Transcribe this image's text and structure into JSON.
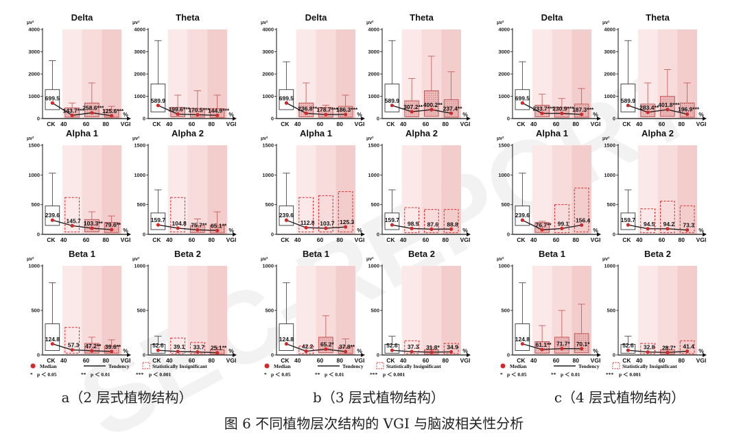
{
  "watermark": "SEC-REPORT",
  "colors": {
    "median": "#d62728",
    "sig": "#e5a3a3",
    "sigEdge": "#c05050",
    "insigEdge": "#d62728",
    "tendency": "#222222",
    "bandLight": "#fbe9e9",
    "bandMid": "#f8dcdc",
    "bandDark": "#f3cccc"
  },
  "axis": {
    "unit": "μv²",
    "pct": "%",
    "vgi": "VGI",
    "ck": "CK",
    "x_ticks": [
      "40",
      "60",
      "80"
    ]
  },
  "captions": {
    "a": "a（2 层式植物结构）",
    "b": "b（3 层式植物结构）",
    "c": "c（4 层式植物结构）",
    "figure": "图 6 不同植物层次结构的 VGI 与脑波相关性分析"
  },
  "legend": {
    "median": "Median",
    "tendency": "Tendency",
    "insignificant": "Statistically Insignificant",
    "p1": "p ＜ 0.05",
    "p2": "p ＜ 0.01",
    "p3": "p ＜ 0.001",
    "s1": "*",
    "s2": "**",
    "s3": "***"
  },
  "chart_data": [
    {
      "type": "box",
      "group": "a",
      "title": "Delta",
      "ylim": [
        0,
        4000
      ],
      "yticks": [
        0,
        1000,
        2000,
        3000,
        4000
      ],
      "boxes": [
        {
          "q1": 400,
          "q3": 1300,
          "whisker_high": 2600,
          "median": 699.5,
          "label": "699.5",
          "sig": "ck"
        },
        {
          "q1": 60,
          "q3": 480,
          "whisker_high": 700,
          "median": 143.7,
          "label": "143.7***",
          "sig": "sig"
        },
        {
          "q1": 80,
          "q3": 700,
          "whisker_high": 1600,
          "median": 258.6,
          "label": "258.6***",
          "sig": "sig"
        },
        {
          "q1": 60,
          "q3": 400,
          "whisker_high": 550,
          "median": 125.6,
          "label": "125.6***",
          "sig": "sig"
        }
      ]
    },
    {
      "type": "box",
      "group": "a",
      "title": "Theta",
      "ylim": [
        0,
        4000
      ],
      "yticks": [
        0,
        1000,
        2000,
        3000,
        4000
      ],
      "boxes": [
        {
          "q1": 300,
          "q3": 1550,
          "whisker_high": 3500,
          "median": 589.9,
          "label": "589.9",
          "sig": "ck"
        },
        {
          "q1": 80,
          "q3": 500,
          "whisker_high": 1050,
          "median": 199.6,
          "label": "199.6***",
          "sig": "sig"
        },
        {
          "q1": 60,
          "q3": 450,
          "whisker_high": 1250,
          "median": 170.5,
          "label": "170.5***",
          "sig": "sig"
        },
        {
          "q1": 50,
          "q3": 450,
          "whisker_high": 1050,
          "median": 144.9,
          "label": "144.9***",
          "sig": "sig"
        }
      ]
    },
    {
      "type": "box",
      "group": "b",
      "title": "Delta",
      "ylim": [
        0,
        4000
      ],
      "yticks": [
        0,
        1000,
        2000,
        3000,
        4000
      ],
      "boxes": [
        {
          "q1": 400,
          "q3": 1300,
          "whisker_high": 2550,
          "median": 699.5,
          "label": "699.5",
          "sig": "ck"
        },
        {
          "q1": 80,
          "q3": 700,
          "whisker_high": 1600,
          "median": 236.8,
          "label": "236.8**",
          "sig": "sig"
        },
        {
          "q1": 60,
          "q3": 500,
          "whisker_high": 600,
          "median": 178.7,
          "label": "178.7***",
          "sig": "sig"
        },
        {
          "q1": 60,
          "q3": 550,
          "whisker_high": 1050,
          "median": 186.3,
          "label": "186.3***",
          "sig": "sig"
        }
      ]
    },
    {
      "type": "box",
      "group": "b",
      "title": "Theta",
      "ylim": [
        0,
        4000
      ],
      "yticks": [
        0,
        1000,
        2000,
        3000,
        4000
      ],
      "boxes": [
        {
          "q1": 300,
          "q3": 1550,
          "whisker_high": 3500,
          "median": 589.9,
          "label": "589.9",
          "sig": "ck"
        },
        {
          "q1": 80,
          "q3": 800,
          "whisker_high": 1800,
          "median": 307.2,
          "label": "307.2**",
          "sig": "sig"
        },
        {
          "q1": 100,
          "q3": 1250,
          "whisker_high": 2800,
          "median": 400.2,
          "label": "400.2**",
          "sig": "sig"
        },
        {
          "q1": 60,
          "q3": 850,
          "whisker_high": 2100,
          "median": 237.4,
          "label": "237.4**",
          "sig": "sig"
        }
      ]
    },
    {
      "type": "box",
      "group": "c",
      "title": "Delta",
      "ylim": [
        0,
        4000
      ],
      "yticks": [
        0,
        1000,
        2000,
        3000,
        4000
      ],
      "boxes": [
        {
          "q1": 400,
          "q3": 1300,
          "whisker_high": 2550,
          "median": 699.5,
          "label": "699.5",
          "sig": "ck"
        },
        {
          "q1": 80,
          "q3": 600,
          "whisker_high": 1100,
          "median": 233.7,
          "label": "233.7***",
          "sig": "sig"
        },
        {
          "q1": 60,
          "q3": 500,
          "whisker_high": 900,
          "median": 230.9,
          "label": "230.9***",
          "sig": "sig"
        },
        {
          "q1": 60,
          "q3": 650,
          "whisker_high": 1350,
          "median": 187.3,
          "label": "187.3***",
          "sig": "sig"
        }
      ]
    },
    {
      "type": "box",
      "group": "c",
      "title": "Theta",
      "ylim": [
        0,
        4000
      ],
      "yticks": [
        0,
        1000,
        2000,
        3000,
        4000
      ],
      "boxes": [
        {
          "q1": 300,
          "q3": 1550,
          "whisker_high": 3500,
          "median": 589.9,
          "label": "589.9",
          "sig": "ck"
        },
        {
          "q1": 80,
          "q3": 650,
          "whisker_high": 1600,
          "median": 283.4,
          "label": "283.4**",
          "sig": "sig"
        },
        {
          "q1": 100,
          "q3": 1000,
          "whisker_high": 2200,
          "median": 401.8,
          "label": "401.8***",
          "sig": "sig"
        },
        {
          "q1": 60,
          "q3": 700,
          "whisker_high": 1600,
          "median": 196.9,
          "label": "196.9***",
          "sig": "sig"
        }
      ]
    },
    {
      "type": "box",
      "group": "a",
      "title": "Alpha 1",
      "ylim": [
        0,
        1500
      ],
      "yticks": [
        0,
        500,
        1000,
        1500
      ],
      "boxes": [
        {
          "q1": 150,
          "q3": 480,
          "whisker_high": 1030,
          "median": 239.6,
          "label": "239.6",
          "sig": "ck"
        },
        {
          "q1": 40,
          "q3": 620,
          "whisker_high": 620,
          "median": 145.7,
          "label": "145.7",
          "sig": "insig"
        },
        {
          "q1": 40,
          "q3": 250,
          "whisker_high": 380,
          "median": 103.3,
          "label": "103.3**",
          "sig": "sig"
        },
        {
          "q1": 30,
          "q3": 200,
          "whisker_high": 310,
          "median": 79.6,
          "label": "79.6**",
          "sig": "sig"
        }
      ]
    },
    {
      "type": "box",
      "group": "a",
      "title": "Alpha 2",
      "ylim": [
        0,
        1500
      ],
      "yticks": [
        0,
        500,
        1000,
        1500
      ],
      "boxes": [
        {
          "q1": 80,
          "q3": 360,
          "whisker_high": 750,
          "median": 159.7,
          "label": "159.7",
          "sig": "ck"
        },
        {
          "q1": 40,
          "q3": 620,
          "whisker_high": 620,
          "median": 104.8,
          "label": "104.8",
          "sig": "insig"
        },
        {
          "q1": 30,
          "q3": 150,
          "whisker_high": 260,
          "median": 75.7,
          "label": "75.7**",
          "sig": "sig"
        },
        {
          "q1": 25,
          "q3": 150,
          "whisker_high": 380,
          "median": 65.1,
          "label": "65.1**",
          "sig": "sig"
        }
      ]
    },
    {
      "type": "box",
      "group": "b",
      "title": "Alpha 1",
      "ylim": [
        0,
        1500
      ],
      "yticks": [
        0,
        500,
        1000,
        1500
      ],
      "boxes": [
        {
          "q1": 150,
          "q3": 480,
          "whisker_high": 1030,
          "median": 239.6,
          "label": "239.6",
          "sig": "ck"
        },
        {
          "q1": 40,
          "q3": 620,
          "whisker_high": 620,
          "median": 112.8,
          "label": "112.8",
          "sig": "insig"
        },
        {
          "q1": 40,
          "q3": 650,
          "whisker_high": 650,
          "median": 103.7,
          "label": "103.7",
          "sig": "insig"
        },
        {
          "q1": 40,
          "q3": 720,
          "whisker_high": 720,
          "median": 125.3,
          "label": "125.3",
          "sig": "insig"
        }
      ]
    },
    {
      "type": "box",
      "group": "b",
      "title": "Alpha 2",
      "ylim": [
        0,
        1500
      ],
      "yticks": [
        0,
        500,
        1000,
        1500
      ],
      "boxes": [
        {
          "q1": 80,
          "q3": 360,
          "whisker_high": 750,
          "median": 159.7,
          "label": "159.7",
          "sig": "ck"
        },
        {
          "q1": 30,
          "q3": 450,
          "whisker_high": 450,
          "median": 98.9,
          "label": "98.9",
          "sig": "insig"
        },
        {
          "q1": 30,
          "q3": 420,
          "whisker_high": 420,
          "median": 87.6,
          "label": "87.6",
          "sig": "insig"
        },
        {
          "q1": 30,
          "q3": 420,
          "whisker_high": 420,
          "median": 88.8,
          "label": "88.8",
          "sig": "insig"
        }
      ]
    },
    {
      "type": "box",
      "group": "c",
      "title": "Alpha 1",
      "ylim": [
        0,
        1500
      ],
      "yticks": [
        0,
        500,
        1000,
        1500
      ],
      "boxes": [
        {
          "q1": 150,
          "q3": 480,
          "whisker_high": 1030,
          "median": 239.6,
          "label": "239.6",
          "sig": "ck"
        },
        {
          "q1": 30,
          "q3": 200,
          "whisker_high": 220,
          "median": 76.7,
          "label": "76.7**",
          "sig": "sig"
        },
        {
          "q1": 30,
          "q3": 500,
          "whisker_high": 500,
          "median": 99.1,
          "label": "99.1",
          "sig": "insig"
        },
        {
          "q1": 40,
          "q3": 780,
          "whisker_high": 780,
          "median": 156.4,
          "label": "156.4",
          "sig": "insig"
        }
      ]
    },
    {
      "type": "box",
      "group": "c",
      "title": "Alpha 2",
      "ylim": [
        0,
        1500
      ],
      "yticks": [
        0,
        500,
        1000,
        1500
      ],
      "boxes": [
        {
          "q1": 80,
          "q3": 360,
          "whisker_high": 750,
          "median": 159.7,
          "label": "159.7",
          "sig": "ck"
        },
        {
          "q1": 30,
          "q3": 430,
          "whisker_high": 430,
          "median": 94.5,
          "label": "94.5",
          "sig": "insig"
        },
        {
          "q1": 30,
          "q3": 560,
          "whisker_high": 560,
          "median": 94.2,
          "label": "94.2",
          "sig": "insig"
        },
        {
          "q1": 30,
          "q3": 480,
          "whisker_high": 480,
          "median": 73.3,
          "label": "73.3",
          "sig": "insig"
        }
      ]
    },
    {
      "type": "box",
      "group": "a",
      "title": "Beta 1",
      "ylim": [
        0,
        1000
      ],
      "yticks": [
        0,
        500,
        1000
      ],
      "boxes": [
        {
          "q1": 50,
          "q3": 350,
          "whisker_high": 810,
          "median": 124.8,
          "label": "124.8",
          "sig": "ck"
        },
        {
          "q1": 20,
          "q3": 310,
          "whisker_high": 310,
          "median": 57.3,
          "label": "57.3",
          "sig": "insig"
        },
        {
          "q1": 20,
          "q3": 130,
          "whisker_high": 200,
          "median": 47.2,
          "label": "47.2**",
          "sig": "sig"
        },
        {
          "q1": 20,
          "q3": 100,
          "whisker_high": 170,
          "median": 39.6,
          "label": "39.6**",
          "sig": "sig"
        }
      ]
    },
    {
      "type": "box",
      "group": "a",
      "title": "Beta 2",
      "ylim": [
        0,
        1000
      ],
      "yticks": [
        0,
        500,
        1000
      ],
      "boxes": [
        {
          "q1": 20,
          "q3": 120,
          "whisker_high": 210,
          "median": 52.6,
          "label": "52.6",
          "sig": "ck"
        },
        {
          "q1": 15,
          "q3": 190,
          "whisker_high": 190,
          "median": 39.1,
          "label": "39.1",
          "sig": "insig"
        },
        {
          "q1": 15,
          "q3": 140,
          "whisker_high": 140,
          "median": 33.7,
          "label": "33.7",
          "sig": "insig"
        },
        {
          "q1": 10,
          "q3": 60,
          "whisker_high": 90,
          "median": 25.1,
          "label": "25.1**",
          "sig": "sig"
        }
      ]
    },
    {
      "type": "box",
      "group": "b",
      "title": "Beta 1",
      "ylim": [
        0,
        1000
      ],
      "yticks": [
        0,
        500,
        1000
      ],
      "boxes": [
        {
          "q1": 50,
          "q3": 350,
          "whisker_high": 810,
          "median": 124.8,
          "label": "124.8",
          "sig": "ck"
        },
        {
          "q1": 15,
          "q3": 100,
          "whisker_high": 100,
          "median": 42.2,
          "label": "42.2",
          "sig": "insig"
        },
        {
          "q1": 25,
          "q3": 200,
          "whisker_high": 440,
          "median": 65.2,
          "label": "65.2*",
          "sig": "sig"
        },
        {
          "q1": 15,
          "q3": 90,
          "whisker_high": 180,
          "median": 37.8,
          "label": "37.8**",
          "sig": "sig"
        }
      ]
    },
    {
      "type": "box",
      "group": "b",
      "title": "Beta 2",
      "ylim": [
        0,
        1000
      ],
      "yticks": [
        0,
        500,
        1000
      ],
      "boxes": [
        {
          "q1": 20,
          "q3": 120,
          "whisker_high": 210,
          "median": 52.6,
          "label": "52.6",
          "sig": "ck"
        },
        {
          "q1": 15,
          "q3": 160,
          "whisker_high": 160,
          "median": 37.3,
          "label": "37.3",
          "sig": "insig"
        },
        {
          "q1": 10,
          "q3": 60,
          "whisker_high": 90,
          "median": 31.8,
          "label": "31.8*",
          "sig": "sig"
        },
        {
          "q1": 15,
          "q3": 130,
          "whisker_high": 130,
          "median": 34.9,
          "label": "34.9",
          "sig": "insig"
        }
      ]
    },
    {
      "type": "box",
      "group": "c",
      "title": "Beta 1",
      "ylim": [
        0,
        1000
      ],
      "yticks": [
        0,
        500,
        1000
      ],
      "boxes": [
        {
          "q1": 50,
          "q3": 350,
          "whisker_high": 810,
          "median": 124.8,
          "label": "124.8",
          "sig": "ck"
        },
        {
          "q1": 20,
          "q3": 150,
          "whisker_high": 330,
          "median": 61.1,
          "label": "61.1**",
          "sig": "sig"
        },
        {
          "q1": 20,
          "q3": 200,
          "whisker_high": 500,
          "median": 71.7,
          "label": "71.7*",
          "sig": "sig"
        },
        {
          "q1": 25,
          "q3": 240,
          "whisker_high": 570,
          "median": 70.1,
          "label": "70.1*",
          "sig": "sig"
        }
      ]
    },
    {
      "type": "box",
      "group": "c",
      "title": "Beta 2",
      "ylim": [
        0,
        1000
      ],
      "yticks": [
        0,
        500,
        1000
      ],
      "boxes": [
        {
          "q1": 20,
          "q3": 120,
          "whisker_high": 210,
          "median": 52.6,
          "label": "52.6",
          "sig": "ck"
        },
        {
          "q1": 15,
          "q3": 130,
          "whisker_high": 130,
          "median": 32.8,
          "label": "32.8",
          "sig": "insig"
        },
        {
          "q1": 10,
          "q3": 60,
          "whisker_high": 90,
          "median": 28.7,
          "label": "28.7*",
          "sig": "sig"
        },
        {
          "q1": 15,
          "q3": 160,
          "whisker_high": 160,
          "median": 41.4,
          "label": "41.4",
          "sig": "insig"
        }
      ]
    }
  ]
}
